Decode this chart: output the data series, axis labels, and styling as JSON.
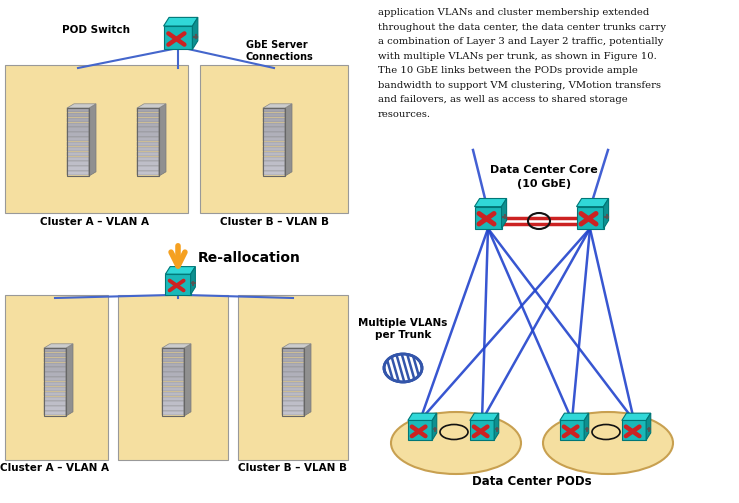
{
  "bg_color": "#ffffff",
  "left_panel": {
    "cluster_bg": "#f5dfa0",
    "switch_color_front": "#1ab8b8",
    "switch_color_top": "#30d8d8",
    "switch_color_right": "#0e9090",
    "arrow_color": "#f5a020",
    "line_color": "#4466cc",
    "pod_switch_label": "POD Switch",
    "gbe_label": "GbE Server\nConnections",
    "realloc_label": "Re-allocation",
    "cluster_a_label": "Cluster A – VLAN A",
    "cluster_b_label": "Cluster B – VLAN B"
  },
  "right_panel": {
    "core_label_1": "Data Center Core",
    "core_label_2": "(10 GbE)",
    "vlans_label": "Multiple VLANs\nper Trunk",
    "pods_label": "Data Center PODs",
    "line_color": "#2244cc",
    "red_line_color": "#cc2222",
    "switch_color_front": "#1ab8b8",
    "switch_color_top": "#30d8d8",
    "switch_color_right": "#0e9090",
    "pod_bg": "#f5dfa0",
    "vlan_stripe_color": "#3355aa",
    "text_line1": "application VLANs and cluster membership extended",
    "text_line2": "throughout the data center, the data center trunks carry",
    "text_line3": "a combination of Layer 3 and Layer 2 traffic, potentially",
    "text_line4": "with multiple VLANs per trunk, as shown in Figure 10.",
    "text_line5": "The 10 GbE links between the PODs provide ample",
    "text_line6": "bandwidth to support VM clustering, VMotion transfers",
    "text_line7": "and failovers, as well as access to shared storage",
    "text_line8": "resources."
  }
}
